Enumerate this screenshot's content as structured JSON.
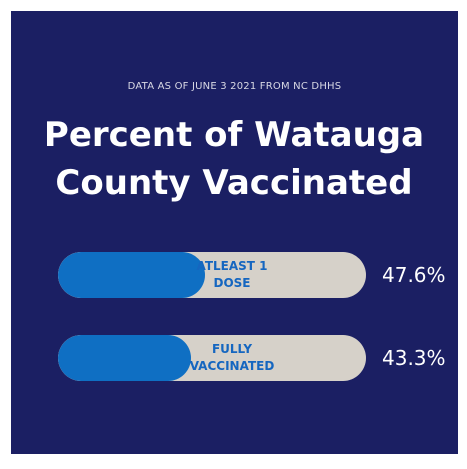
{
  "chart_data": {
    "type": "bar",
    "orientation": "horizontal",
    "subtitle": "DATA AS OF JUNE 3 2021 FROM NC DHHS",
    "title": "Percent of Watauga County Vaccinated",
    "categories": [
      "ATLEAST 1 DOSE",
      "FULLY VACCINATED"
    ],
    "values": [
      47.6,
      43.3
    ],
    "value_labels": [
      "47.6%",
      "43.3%"
    ],
    "color": "#0f6fc3",
    "xlim": [
      0,
      100
    ]
  }
}
